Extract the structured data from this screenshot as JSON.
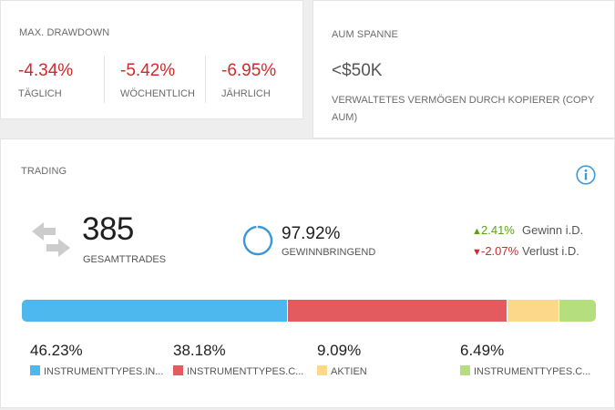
{
  "drawdown": {
    "title": "MAX. DRAWDOWN",
    "items": [
      {
        "value": "-4.34%",
        "label": "TÄGLICH"
      },
      {
        "value": "-5.42%",
        "label": "WÖCHENTLICH"
      },
      {
        "value": "-6.95%",
        "label": "JÄHRLICH"
      }
    ]
  },
  "aum": {
    "title": "AUM SPANNE",
    "value": "<$50K",
    "description": "VERWALTETES VERMÖGEN DURCH KOPIERER (COPY AUM)"
  },
  "trading": {
    "title": "TRADING",
    "info_icon": "info-icon",
    "trades_icon": "swap-arrows-icon",
    "total_trades": "385",
    "total_trades_label": "GESAMTTRADES",
    "win_rate": "97.92%",
    "win_rate_fraction": 0.9792,
    "win_rate_label": "GEWINNBRINGEND",
    "gain": {
      "value": "2.41%",
      "label": "Gewinn i.D."
    },
    "loss": {
      "value": "-2.07%",
      "label": "Verlust i.D."
    },
    "breakdown": [
      {
        "value": "46.23%",
        "share": 46.23,
        "label": "INSTRUMENTTYPES.IN...",
        "color": "#4db8ee"
      },
      {
        "value": "38.18%",
        "share": 38.18,
        "label": "INSTRUMENTTYPES.C...",
        "color": "#e45b5f"
      },
      {
        "value": "9.09%",
        "share": 9.09,
        "label": "AKTIEN",
        "color": "#fcd88a"
      },
      {
        "value": "6.49%",
        "share": 6.49,
        "label": "INSTRUMENTTYPES.C...",
        "color": "#b5df7f"
      }
    ]
  },
  "colors": {
    "negative": "#d1292c",
    "positive": "#56a60d",
    "accent": "#3a9ad9"
  }
}
